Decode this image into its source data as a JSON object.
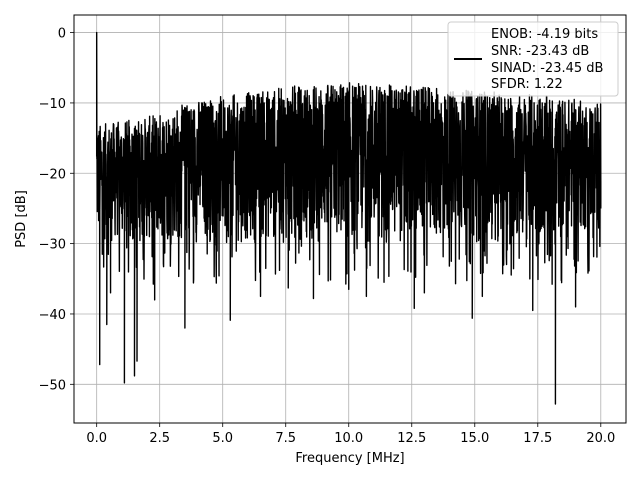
{
  "chart_data": {
    "type": "line",
    "title": "",
    "xlabel": "Frequency [MHz]",
    "ylabel": "PSD [dB]",
    "xlim": [
      -0.9,
      21.0
    ],
    "ylim": [
      -55.5,
      2.5
    ],
    "xticks": [
      0.0,
      2.5,
      5.0,
      7.5,
      10.0,
      12.5,
      15.0,
      17.5,
      20.0
    ],
    "xtick_labels": [
      "0.0",
      "2.5",
      "5.0",
      "7.5",
      "10.0",
      "12.5",
      "15.0",
      "17.5",
      "20.0"
    ],
    "yticks": [
      0,
      -10,
      -20,
      -30,
      -40,
      -50
    ],
    "ytick_labels": [
      "0",
      "−10",
      "−20",
      "−30",
      "−40",
      "−50"
    ],
    "grid": true,
    "legend_position": "top-right",
    "series": [
      {
        "name": "ENOB: -4.19 bits\nSNR: -23.43 dB\nSINAD: -23.45 dB\nSFDR: 1.22",
        "legend_lines": [
          "ENOB: -4.19 bits",
          "SNR: -23.43 dB",
          "SINAD: -23.45 dB",
          "SFDR: 1.22"
        ],
        "color": "#000000",
        "style": "noise spectrum, dense",
        "x_range": [
          0.0,
          20.0
        ],
        "notable_points": [
          {
            "x": 0.0,
            "y": 0.0
          },
          {
            "x": 0.05,
            "y": -15.0
          },
          {
            "x": 0.12,
            "y": -47.2
          },
          {
            "x": 0.4,
            "y": -41.5
          },
          {
            "x": 0.55,
            "y": -37.0
          },
          {
            "x": 1.1,
            "y": -49.8
          },
          {
            "x": 1.5,
            "y": -48.8
          },
          {
            "x": 1.6,
            "y": -46.7
          },
          {
            "x": 2.3,
            "y": -38.0
          },
          {
            "x": 3.5,
            "y": -42.0
          },
          {
            "x": 5.3,
            "y": -40.9
          },
          {
            "x": 6.5,
            "y": -37.5
          },
          {
            "x": 7.6,
            "y": -36.3
          },
          {
            "x": 8.6,
            "y": -37.8
          },
          {
            "x": 10.0,
            "y": -36.5
          },
          {
            "x": 10.7,
            "y": -37.5
          },
          {
            "x": 12.6,
            "y": -39.2
          },
          {
            "x": 13.0,
            "y": -37.0
          },
          {
            "x": 14.9,
            "y": -40.6
          },
          {
            "x": 15.3,
            "y": -37.5
          },
          {
            "x": 17.3,
            "y": -39.5
          },
          {
            "x": 18.2,
            "y": -52.8
          },
          {
            "x": 19.0,
            "y": -39.0
          },
          {
            "x": 20.0,
            "y": -25.0
          }
        ],
        "envelope": [
          {
            "x": 0.2,
            "upper": -13.0,
            "lower": -30.0
          },
          {
            "x": 2.0,
            "upper": -12.0,
            "lower": -30.0
          },
          {
            "x": 4.0,
            "upper": -9.5,
            "lower": -30.0
          },
          {
            "x": 6.0,
            "upper": -8.5,
            "lower": -30.0
          },
          {
            "x": 8.0,
            "upper": -7.5,
            "lower": -30.0
          },
          {
            "x": 10.0,
            "upper": -7.0,
            "lower": -30.0
          },
          {
            "x": 12.0,
            "upper": -7.5,
            "lower": -30.0
          },
          {
            "x": 14.0,
            "upper": -8.0,
            "lower": -30.0
          },
          {
            "x": 16.0,
            "upper": -8.5,
            "lower": -30.0
          },
          {
            "x": 18.0,
            "upper": -9.0,
            "lower": -30.0
          },
          {
            "x": 20.0,
            "upper": -10.0,
            "lower": -28.0
          }
        ]
      }
    ]
  }
}
